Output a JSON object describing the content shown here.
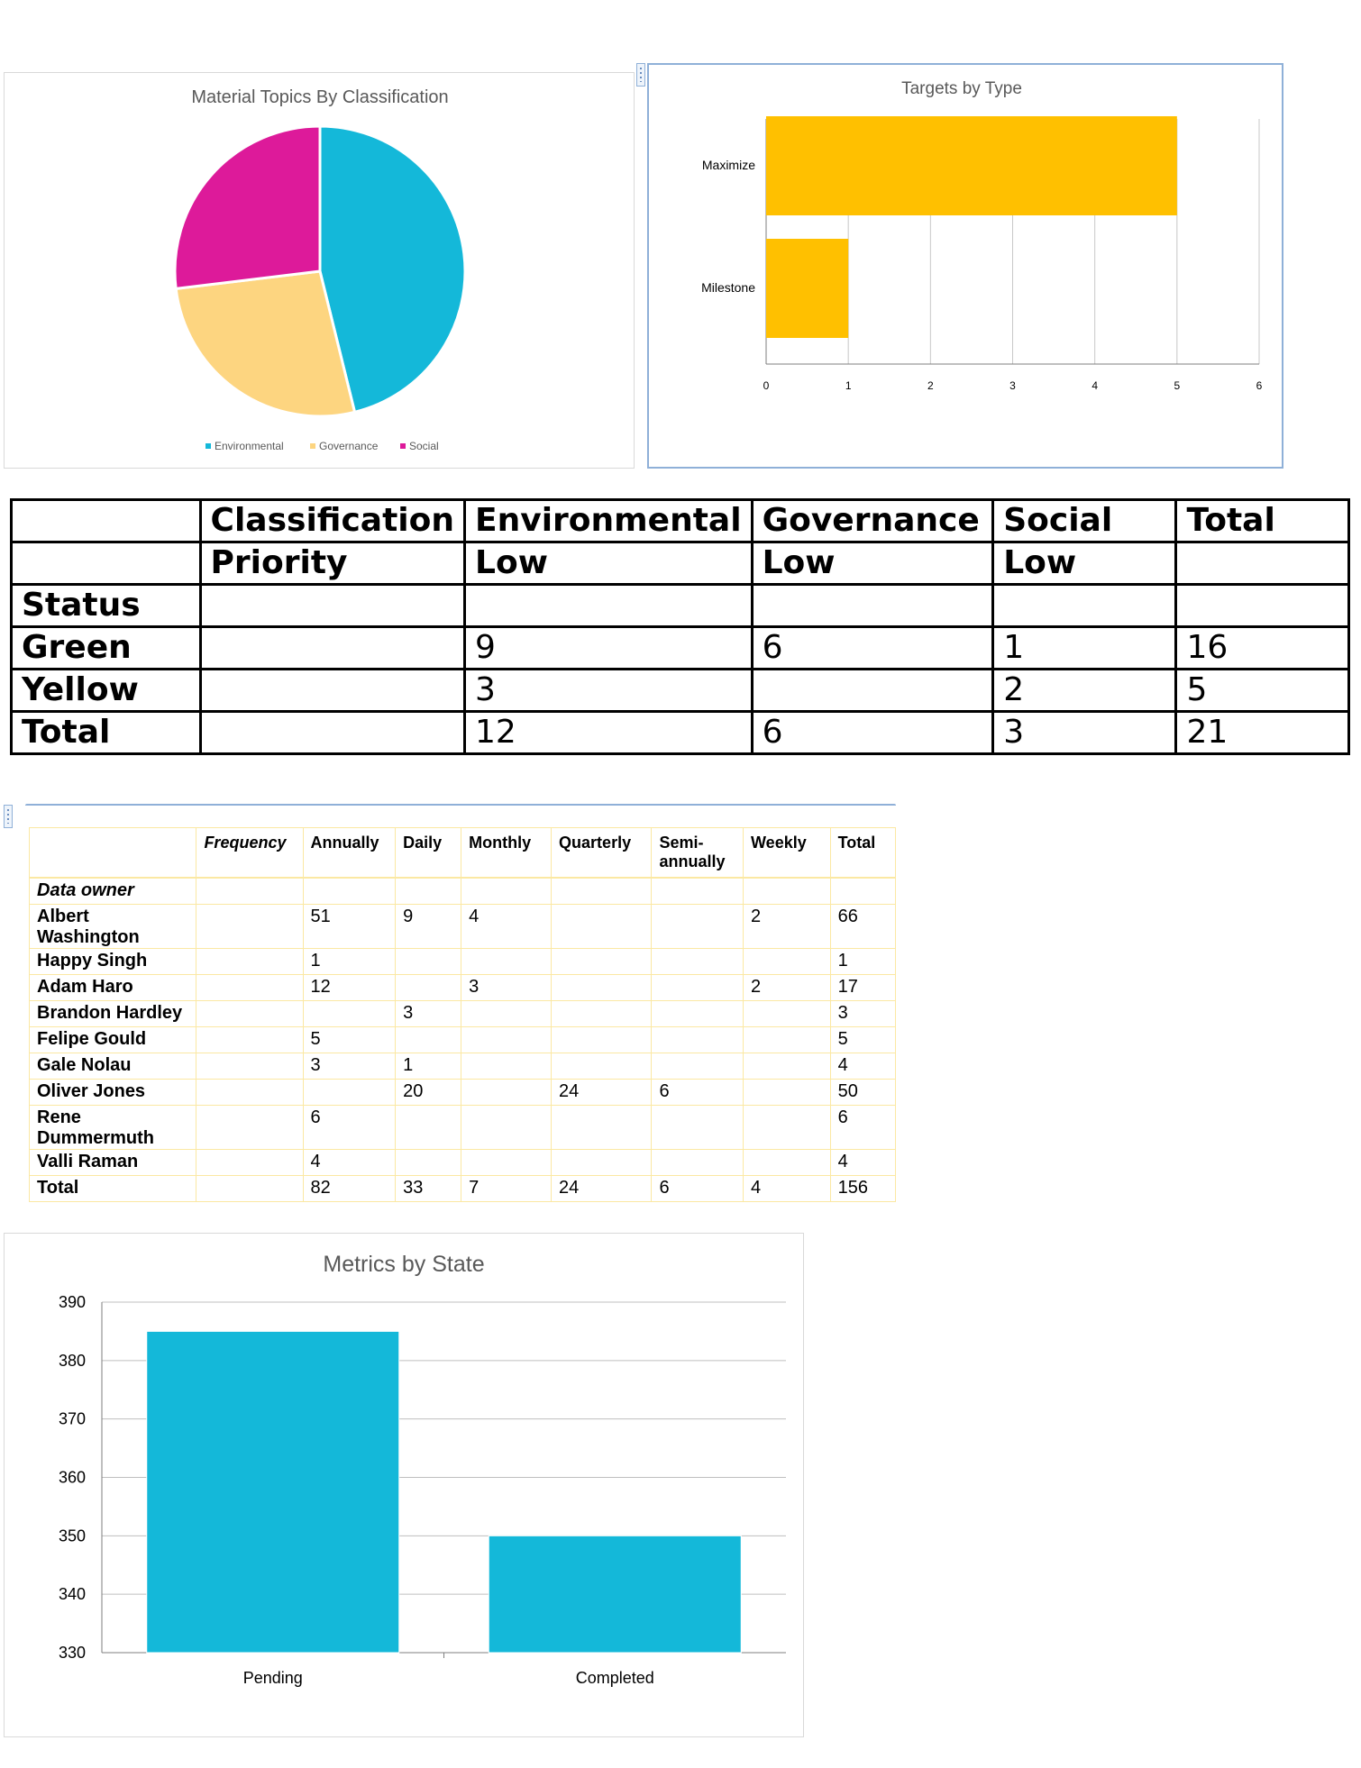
{
  "chart_data": [
    {
      "type": "pie",
      "title": "Material Topics By Classification",
      "categories": [
        "Environmental",
        "Governance",
        "Social"
      ],
      "values": [
        12,
        7,
        7
      ],
      "colors": [
        "#14b8d9",
        "#fdd580",
        "#dd1a9a"
      ],
      "legend": "bottom"
    },
    {
      "type": "bar",
      "orientation": "horizontal",
      "title": "Targets by Type",
      "categories": [
        "Maximize",
        "Milestone"
      ],
      "values": [
        5,
        1
      ],
      "xlim": [
        0,
        6
      ],
      "xticks": [
        "0",
        "1",
        "2",
        "3",
        "4",
        "5",
        "6"
      ],
      "color": "#ffc000",
      "grid": true
    },
    {
      "type": "bar",
      "title": "Metrics by State",
      "categories": [
        "Pending",
        "Completed"
      ],
      "values": [
        385,
        350
      ],
      "ylim": [
        330,
        390
      ],
      "yticks": [
        "390",
        "380",
        "370",
        "360",
        "350",
        "340",
        "330"
      ],
      "color": "#14b8d9",
      "grid": true
    }
  ],
  "summary_table": {
    "header1": [
      "",
      "Classification",
      "Environmental",
      "Governance",
      "Social",
      "Total"
    ],
    "header2": [
      "",
      "Priority",
      "Low",
      "Low",
      "Low",
      ""
    ],
    "header3": [
      "Status",
      "",
      "",
      "",
      "",
      ""
    ],
    "rows": [
      [
        "Green",
        "",
        "9",
        "6",
        "1",
        "16"
      ],
      [
        "Yellow",
        "",
        "3",
        "",
        "2",
        "5"
      ],
      [
        "Total",
        "",
        "12",
        "6",
        "3",
        "21"
      ]
    ]
  },
  "frequency_table": {
    "header": [
      "",
      "Frequency",
      "Annually",
      "Daily",
      "Monthly",
      "Quarterly",
      "Semi-annually",
      "Weekly",
      "Total"
    ],
    "owner_label": "Data owner",
    "rows": [
      [
        "Albert Washington",
        "",
        "51",
        "9",
        "4",
        "",
        "",
        "2",
        "66"
      ],
      [
        "Happy Singh",
        "",
        "1",
        "",
        "",
        "",
        "",
        "",
        "1"
      ],
      [
        "Adam Haro",
        "",
        "12",
        "",
        "3",
        "",
        "",
        "2",
        "17"
      ],
      [
        "Brandon Hardley",
        "",
        "",
        "3",
        "",
        "",
        "",
        "",
        "3"
      ],
      [
        "Felipe Gould",
        "",
        "5",
        "",
        "",
        "",
        "",
        "",
        "5"
      ],
      [
        "Gale Nolau",
        "",
        "3",
        "1",
        "",
        "",
        "",
        "",
        "4"
      ],
      [
        "Oliver Jones",
        "",
        "",
        "20",
        "",
        "24",
        "6",
        "",
        "50"
      ],
      [
        "Rene Dummermuth",
        "",
        "6",
        "",
        "",
        "",
        "",
        "",
        "6"
      ],
      [
        "Valli Raman",
        "",
        "4",
        "",
        "",
        "",
        "",
        "",
        "4"
      ],
      [
        "Total",
        "",
        "82",
        "33",
        "7",
        "24",
        "6",
        "4",
        "156"
      ]
    ]
  }
}
